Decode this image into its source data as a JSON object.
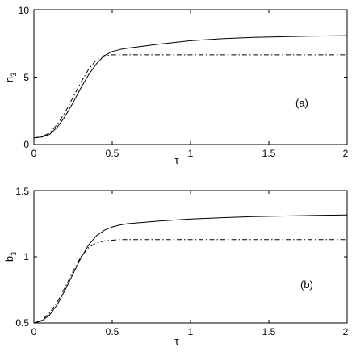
{
  "chart_data": [
    {
      "type": "line",
      "panel_label": "(a)",
      "xlabel": "τ",
      "ylabel": "n",
      "ylabel_sub": "3",
      "xlim": [
        0,
        2
      ],
      "ylim": [
        0,
        10
      ],
      "xticks": [
        "0",
        "0.5",
        "1",
        "1.5",
        "2"
      ],
      "yticks": [
        "0",
        "5",
        "10"
      ],
      "grid": false,
      "series": [
        {
          "style": "solid",
          "x": [
            0,
            0.05,
            0.1,
            0.15,
            0.2,
            0.25,
            0.3,
            0.35,
            0.4,
            0.45,
            0.5,
            0.55,
            0.6,
            0.7,
            0.8,
            1.0,
            1.2,
            1.4,
            1.6,
            1.8,
            2.0
          ],
          "y": [
            0.5,
            0.55,
            0.75,
            1.3,
            2.1,
            3.1,
            4.2,
            5.2,
            6.0,
            6.6,
            6.9,
            7.05,
            7.15,
            7.3,
            7.45,
            7.7,
            7.85,
            7.95,
            8.0,
            8.05,
            8.08
          ]
        },
        {
          "style": "dashdot",
          "x": [
            0,
            0.05,
            0.1,
            0.15,
            0.2,
            0.25,
            0.3,
            0.35,
            0.4,
            0.45,
            0.5,
            0.55,
            0.6,
            0.8,
            1.0,
            1.5,
            2.0
          ],
          "y": [
            0.5,
            0.58,
            0.85,
            1.5,
            2.4,
            3.5,
            4.6,
            5.6,
            6.3,
            6.6,
            6.65,
            6.65,
            6.65,
            6.65,
            6.65,
            6.65,
            6.65
          ]
        }
      ]
    },
    {
      "type": "line",
      "panel_label": "(b)",
      "xlabel": "τ",
      "ylabel": "b",
      "ylabel_sub": "3",
      "xlim": [
        0,
        2
      ],
      "ylim": [
        0.5,
        1.5
      ],
      "xticks": [
        "0",
        "0.5",
        "1",
        "1.5",
        "2"
      ],
      "yticks": [
        "0.5",
        "1",
        "1.5"
      ],
      "grid": false,
      "series": [
        {
          "style": "solid",
          "x": [
            0,
            0.05,
            0.1,
            0.15,
            0.2,
            0.25,
            0.3,
            0.35,
            0.4,
            0.45,
            0.5,
            0.55,
            0.6,
            0.8,
            1.0,
            1.2,
            1.4,
            1.6,
            1.8,
            2.0
          ],
          "y": [
            0.5,
            0.515,
            0.56,
            0.64,
            0.75,
            0.87,
            0.99,
            1.09,
            1.16,
            1.2,
            1.225,
            1.24,
            1.25,
            1.27,
            1.285,
            1.295,
            1.303,
            1.308,
            1.312,
            1.315
          ]
        },
        {
          "style": "dashdot",
          "x": [
            0,
            0.05,
            0.1,
            0.15,
            0.2,
            0.25,
            0.3,
            0.35,
            0.4,
            0.45,
            0.5,
            0.55,
            0.6,
            0.8,
            1.0,
            1.5,
            2.0
          ],
          "y": [
            0.5,
            0.52,
            0.575,
            0.66,
            0.77,
            0.89,
            1.0,
            1.07,
            1.105,
            1.12,
            1.125,
            1.13,
            1.13,
            1.13,
            1.13,
            1.13,
            1.13
          ]
        }
      ]
    }
  ]
}
